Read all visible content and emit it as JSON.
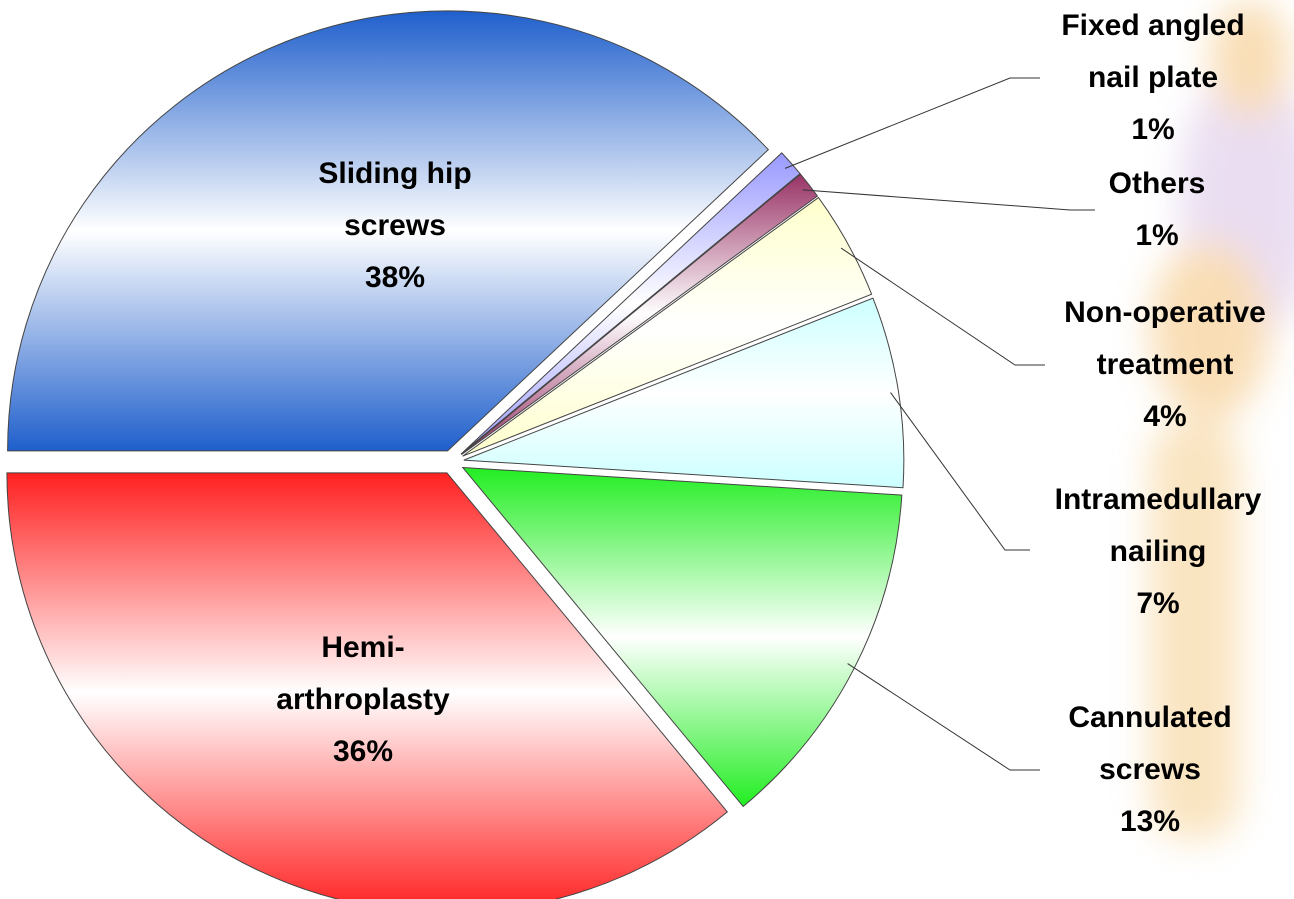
{
  "chart_data": {
    "type": "pie",
    "categories": [
      "Sliding hip screws",
      "Fixed angled nail plate",
      "Others",
      "Non-operative treatment",
      "Intramedullary nailing",
      "Cannulated screws",
      "Hemi-arthroplasty"
    ],
    "values": [
      38,
      1,
      1,
      4,
      7,
      13,
      36
    ],
    "value_labels": [
      "38%",
      "1%",
      "1%",
      "4%",
      "7%",
      "13%",
      "36%"
    ],
    "colors": [
      "#1f5fcc",
      "#9999ff",
      "#993366",
      "#ffffcc",
      "#ccffff",
      "#22ee22",
      "#ff2020"
    ],
    "start_angle": 180,
    "direction": "clockwise"
  }
}
